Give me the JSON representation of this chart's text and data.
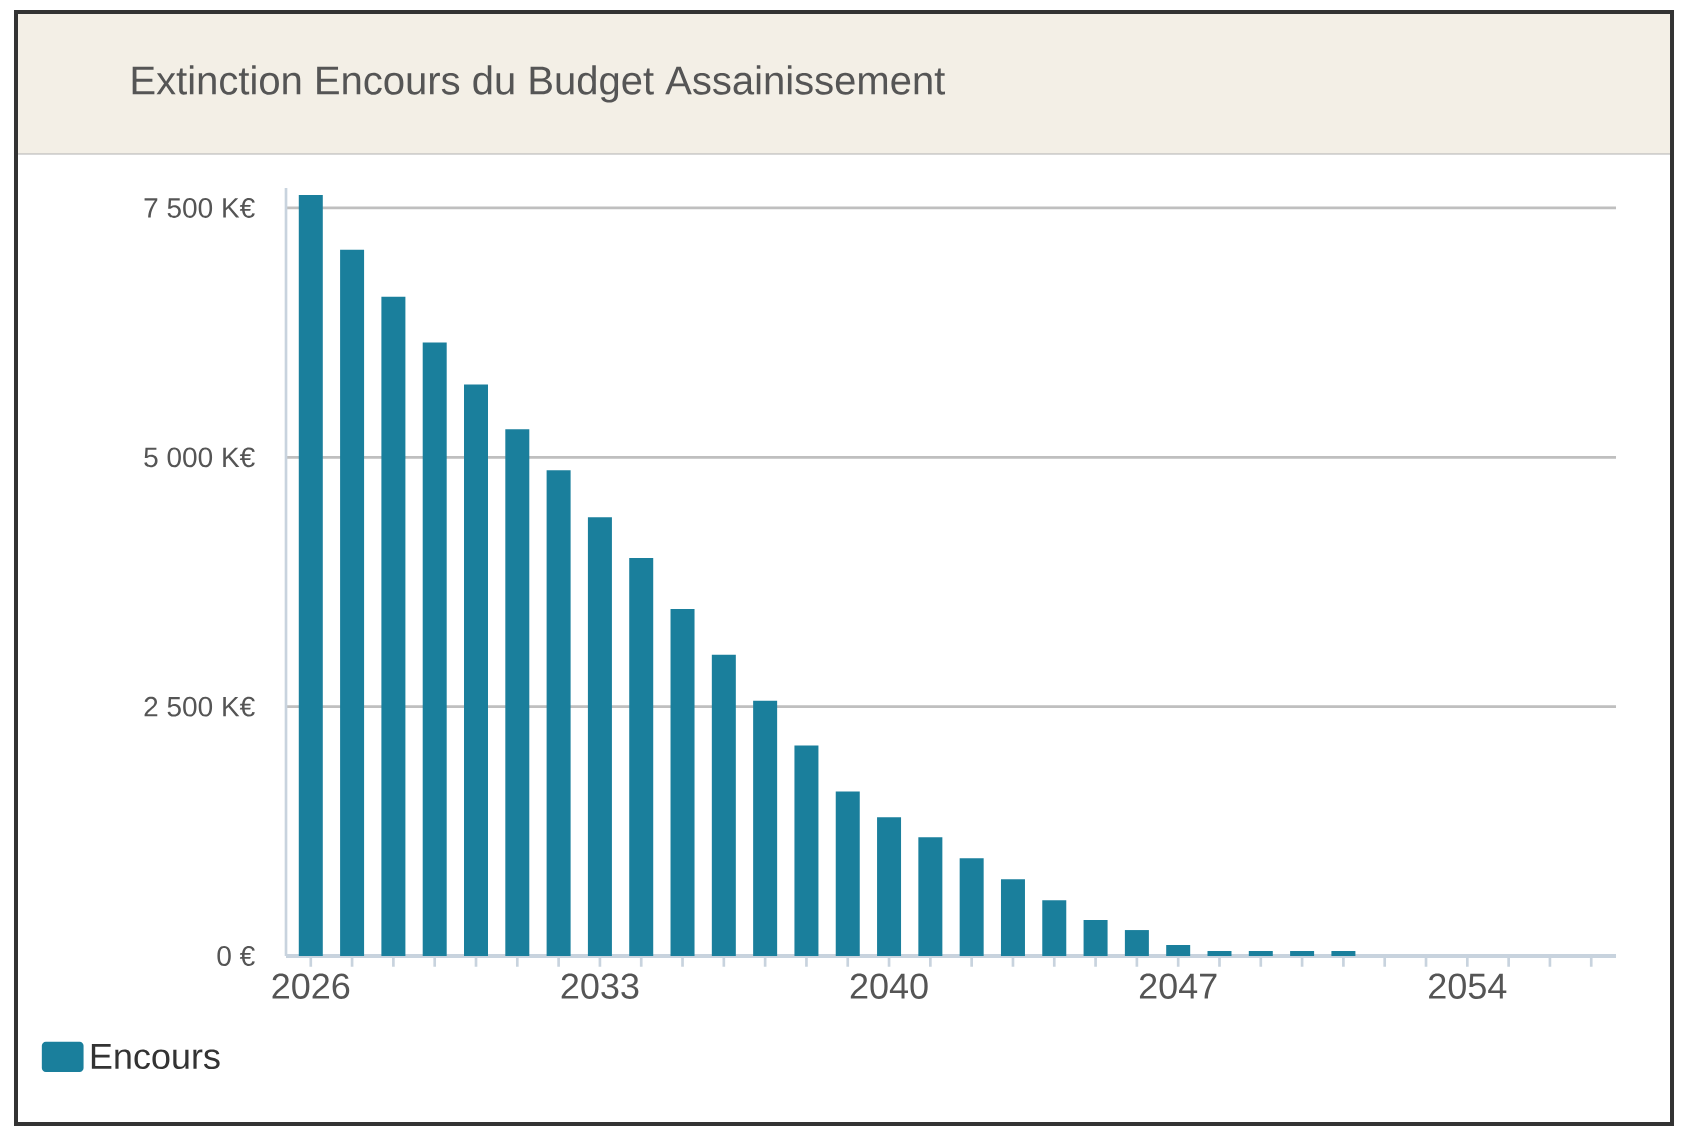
{
  "chart_data": {
    "type": "bar",
    "title": "Extinction Encours du Budget Assainissement",
    "categories": [
      "2026",
      null,
      null,
      null,
      null,
      null,
      null,
      "2033",
      null,
      null,
      null,
      null,
      null,
      null,
      "2040",
      null,
      null,
      null,
      null,
      null,
      null,
      "2047",
      null,
      null,
      null,
      null,
      null,
      null,
      "2054",
      null,
      null,
      null
    ],
    "series": [
      {
        "name": "Encours",
        "color": "#1a7f9c",
        "values": [
          7630,
          7080,
          6610,
          6150,
          5730,
          5280,
          4870,
          4400,
          3990,
          3480,
          3020,
          2560,
          2110,
          1650,
          1390,
          1190,
          980,
          770,
          560,
          360,
          260,
          110,
          50,
          50,
          50,
          50,
          0,
          0,
          0,
          0,
          0,
          0
        ]
      }
    ],
    "ylim": [
      0,
      7700
    ],
    "yticks": [
      {
        "value": 0,
        "label": "0 €"
      },
      {
        "value": 2500,
        "label": "2 500 K€"
      },
      {
        "value": 5000,
        "label": "5 000 K€"
      },
      {
        "value": 7500,
        "label": "7 500 K€"
      }
    ],
    "grid": "y",
    "legend": "bottom left"
  }
}
